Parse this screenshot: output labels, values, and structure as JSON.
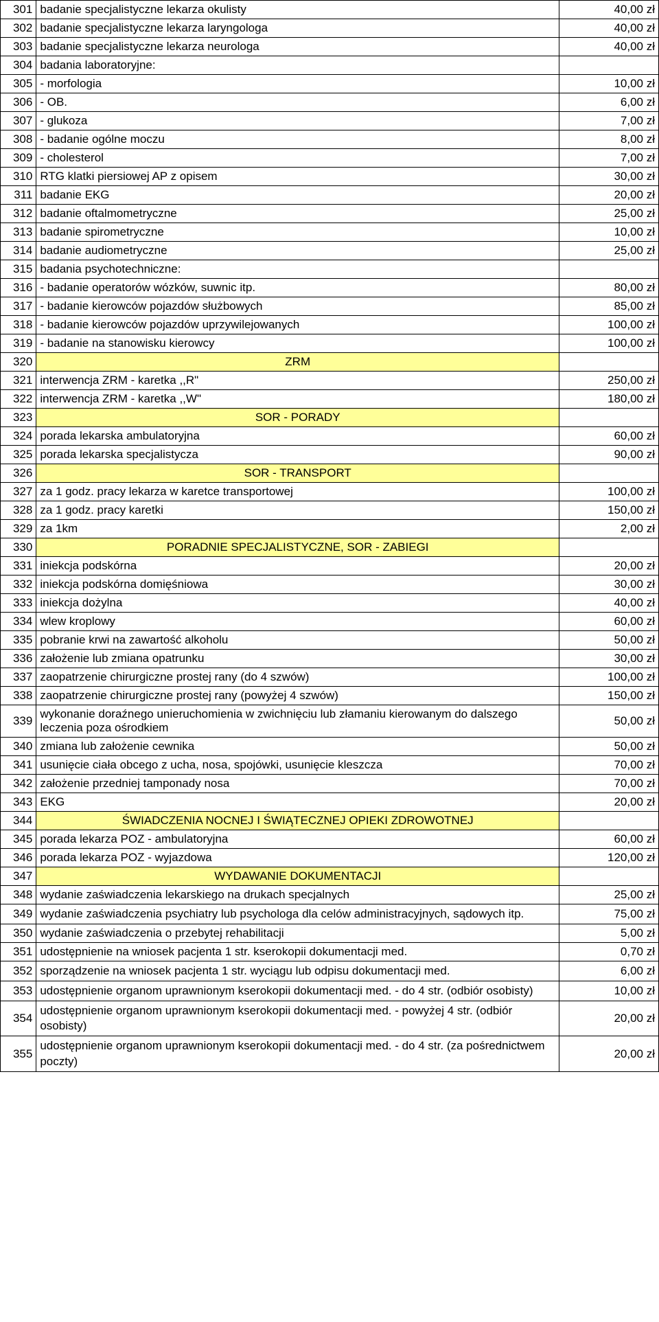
{
  "rows": [
    {
      "num": "301",
      "desc": "badanie specjalistyczne lekarza okulisty",
      "price": "40,00 zł",
      "header": false
    },
    {
      "num": "302",
      "desc": "badanie specjalistyczne lekarza laryngologa",
      "price": "40,00 zł",
      "header": false
    },
    {
      "num": "303",
      "desc": "badanie specjalistyczne lekarza neurologa",
      "price": "40,00 zł",
      "header": false
    },
    {
      "num": "304",
      "desc": "badania laboratoryjne:",
      "price": "",
      "header": false
    },
    {
      "num": "305",
      "desc": " - morfologia",
      "price": "10,00 zł",
      "header": false
    },
    {
      "num": "306",
      "desc": " - OB.",
      "price": "6,00 zł",
      "header": false
    },
    {
      "num": "307",
      "desc": " - glukoza",
      "price": "7,00 zł",
      "header": false
    },
    {
      "num": "308",
      "desc": " - badanie ogólne moczu",
      "price": "8,00 zł",
      "header": false
    },
    {
      "num": "309",
      "desc": " - cholesterol",
      "price": "7,00 zł",
      "header": false
    },
    {
      "num": "310",
      "desc": "RTG klatki piersiowej AP z opisem",
      "price": "30,00 zł",
      "header": false
    },
    {
      "num": "311",
      "desc": "badanie EKG",
      "price": "20,00 zł",
      "header": false
    },
    {
      "num": "312",
      "desc": "badanie oftalmometryczne",
      "price": "25,00 zł",
      "header": false
    },
    {
      "num": "313",
      "desc": "badanie spirometryczne",
      "price": "10,00 zł",
      "header": false
    },
    {
      "num": "314",
      "desc": "badanie audiometryczne",
      "price": "25,00 zł",
      "header": false
    },
    {
      "num": "315",
      "desc": "badania psychotechniczne:",
      "price": "",
      "header": false
    },
    {
      "num": "316",
      "desc": " - badanie operatorów wózków, suwnic itp.",
      "price": "80,00 zł",
      "header": false
    },
    {
      "num": "317",
      "desc": " - badanie kierowców pojazdów służbowych",
      "price": "85,00 zł",
      "header": false
    },
    {
      "num": "318",
      "desc": " - badanie kierowców pojazdów uprzywilejowanych",
      "price": "100,00 zł",
      "header": false
    },
    {
      "num": "319",
      "desc": " - badanie na stanowisku kierowcy",
      "price": "100,00 zł",
      "header": false
    },
    {
      "num": "320",
      "desc": "ZRM",
      "price": "",
      "header": true
    },
    {
      "num": "321",
      "desc": "interwencja ZRM - karetka ,,R\"",
      "price": "250,00 zł",
      "header": false
    },
    {
      "num": "322",
      "desc": "interwencja ZRM - karetka ,,W\"",
      "price": "180,00 zł",
      "header": false
    },
    {
      "num": "323",
      "desc": "SOR - PORADY",
      "price": "",
      "header": true
    },
    {
      "num": "324",
      "desc": "porada lekarska ambulatoryjna",
      "price": "60,00 zł",
      "header": false
    },
    {
      "num": "325",
      "desc": "porada lekarska specjalistycza",
      "price": "90,00 zł",
      "header": false
    },
    {
      "num": "326",
      "desc": "SOR - TRANSPORT",
      "price": "",
      "header": true
    },
    {
      "num": "327",
      "desc": "za 1 godz. pracy lekarza w karetce transportowej",
      "price": "100,00 zł",
      "header": false
    },
    {
      "num": "328",
      "desc": "za 1 godz. pracy karetki",
      "price": "150,00 zł",
      "header": false
    },
    {
      "num": "329",
      "desc": "za 1km",
      "price": "2,00 zł",
      "header": false
    },
    {
      "num": "330",
      "desc": "PORADNIE SPECJALISTYCZNE, SOR - ZABIEGI",
      "price": "",
      "header": true
    },
    {
      "num": "331",
      "desc": "iniekcja podskórna",
      "price": "20,00 zł",
      "header": false
    },
    {
      "num": "332",
      "desc": "iniekcja podskórna domięśniowa",
      "price": "30,00 zł",
      "header": false
    },
    {
      "num": "333",
      "desc": "iniekcja dożylna",
      "price": "40,00 zł",
      "header": false
    },
    {
      "num": "334",
      "desc": "wlew kroplowy",
      "price": "60,00 zł",
      "header": false
    },
    {
      "num": "335",
      "desc": "pobranie krwi na zawartość alkoholu",
      "price": "50,00 zł",
      "header": false
    },
    {
      "num": "336",
      "desc": "założenie lub zmiana opatrunku",
      "price": "30,00 zł",
      "header": false
    },
    {
      "num": "337",
      "desc": "zaopatrzenie chirurgiczne prostej rany (do 4 szwów)",
      "price": "100,00 zł",
      "header": false
    },
    {
      "num": "338",
      "desc": "zaopatrzenie chirurgiczne prostej rany (powyżej 4 szwów)",
      "price": "150,00 zł",
      "header": false
    },
    {
      "num": "339",
      "desc": "wykonanie doraźnego unieruchomienia w zwichnięciu lub złamaniu kierowanym do dalszego leczenia poza ośrodkiem",
      "price": "50,00 zł",
      "header": false
    },
    {
      "num": "340",
      "desc": "zmiana lub założenie cewnika",
      "price": "50,00 zł",
      "header": false
    },
    {
      "num": "341",
      "desc": "usunięcie ciała obcego z ucha, nosa, spojówki, usunięcie kleszcza",
      "price": "70,00 zł",
      "header": false
    },
    {
      "num": "342",
      "desc": "założenie przedniej tamponady nosa",
      "price": "70,00 zł",
      "header": false
    },
    {
      "num": "343",
      "desc": "EKG",
      "price": "20,00 zł",
      "header": false
    },
    {
      "num": "344",
      "desc": "ŚWIADCZENIA NOCNEJ I ŚWIĄTECZNEJ OPIEKI ZDROWOTNEJ",
      "price": "",
      "header": true
    },
    {
      "num": "345",
      "desc": "porada lekarza POZ - ambulatoryjna",
      "price": "60,00 zł",
      "header": false
    },
    {
      "num": "346",
      "desc": "porada lekarza POZ - wyjazdowa",
      "price": "120,00 zł",
      "header": false
    },
    {
      "num": "347",
      "desc": "WYDAWANIE DOKUMENTACJI",
      "price": "",
      "header": true
    },
    {
      "num": "348",
      "desc": "wydanie zaświadczenia lekarskiego na drukach specjalnych",
      "price": "25,00 zł",
      "header": false
    },
    {
      "num": "349",
      "desc": "wydanie zaświadczenia psychiatry lub psychologa dla celów administracyjnych, sądowych itp.",
      "price": "75,00 zł",
      "header": false,
      "multiline": true
    },
    {
      "num": "350",
      "desc": "wydanie zaświadczenia o przebytej rehabilitacji",
      "price": "5,00 zł",
      "header": false
    },
    {
      "num": "351",
      "desc": "udostępnienie na wniosek pacjenta 1 str. kserokopii dokumentacji med.",
      "price": "0,70 zł",
      "header": false
    },
    {
      "num": "352",
      "desc": "sporządzenie na wniosek pacjenta 1 str. wyciągu lub odpisu dokumentacji med.",
      "price": "6,00 zł",
      "header": false,
      "multiline": true
    },
    {
      "num": "353",
      "desc": "udostępnienie organom uprawnionym  kserokopii dokumentacji med. - do 4 str. (odbiór osobisty)",
      "price": "10,00 zł",
      "header": false,
      "multiline": true
    },
    {
      "num": "354",
      "desc": "udostępnienie organom uprawnionym  kserokopii dokumentacji med. - powyżej  4 str. (odbiór osobisty)",
      "price": "20,00 zł",
      "header": false,
      "multiline": true
    },
    {
      "num": "355",
      "desc": "udostępnienie organom uprawnionym  kserokopii dokumentacji med. - do 4 str. (za pośrednictwem poczty)",
      "price": "20,00 zł",
      "header": false,
      "multiline": true
    }
  ],
  "colors": {
    "header_bg": "#ffff99",
    "border": "#000000",
    "background": "#ffffff"
  }
}
